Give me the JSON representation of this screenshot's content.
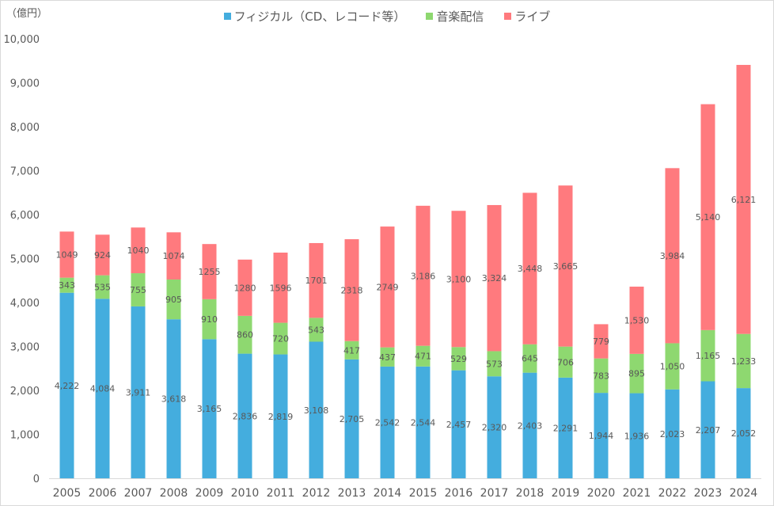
{
  "chart_data": {
    "type": "bar",
    "stacked": true,
    "title": "",
    "unit_label": "（億円）",
    "xlabel": "",
    "ylabel": "",
    "ylim": [
      0,
      10000
    ],
    "yticks": [
      0,
      1000,
      2000,
      3000,
      4000,
      5000,
      6000,
      7000,
      8000,
      9000,
      10000
    ],
    "ytick_labels": [
      "0",
      "1,000",
      "2,000",
      "3,000",
      "4,000",
      "5,000",
      "6,000",
      "7,000",
      "8,000",
      "9,000",
      "10,000"
    ],
    "grid": false,
    "legend_position": "top",
    "categories": [
      "2005",
      "2006",
      "2007",
      "2008",
      "2009",
      "2010",
      "2011",
      "2012",
      "2013",
      "2014",
      "2015",
      "2016",
      "2017",
      "2018",
      "2019",
      "2020",
      "2021",
      "2022",
      "2023",
      "2024"
    ],
    "series": [
      {
        "name": "フィジカル（CD、レコード等）",
        "color": "#44ADDE",
        "values": [
          4222,
          4084,
          3911,
          3618,
          3165,
          2836,
          2819,
          3108,
          2705,
          2542,
          2544,
          2457,
          2320,
          2403,
          2291,
          1944,
          1936,
          2023,
          2207,
          2052
        ],
        "labels": [
          "4,222",
          "4,084",
          "3,911",
          "3,618",
          "3,165",
          "2,836",
          "2,819",
          "3,108",
          "2,705",
          "2,542",
          "2,544",
          "2,457",
          "2,320",
          "2,403",
          "2,291",
          "1,944",
          "1,936",
          "2,023",
          "2,207",
          "2,052"
        ]
      },
      {
        "name": "音楽配信",
        "color": "#8ED870",
        "values": [
          343,
          535,
          755,
          905,
          910,
          860,
          720,
          543,
          417,
          437,
          471,
          529,
          573,
          645,
          706,
          783,
          895,
          1050,
          1165,
          1233
        ],
        "labels": [
          "343",
          "535",
          "755",
          "905",
          "910",
          "860",
          "720",
          "543",
          "417",
          "437",
          "471",
          "529",
          "573",
          "645",
          "706",
          "783",
          "895",
          "1,050",
          "1,165",
          "1,233"
        ]
      },
      {
        "name": "ライブ",
        "color": "#FF7A7E",
        "values": [
          1049,
          924,
          1040,
          1074,
          1255,
          1280,
          1596,
          1701,
          2318,
          2749,
          3186,
          3100,
          3324,
          3448,
          3665,
          779,
          1530,
          3984,
          5140,
          6121
        ],
        "labels": [
          "1049",
          "924",
          "1040",
          "1074",
          "1255",
          "1280",
          "1596",
          "1701",
          "2318",
          "2749",
          "3,186",
          "3,100",
          "3,324",
          "3,448",
          "3,665",
          "779",
          "1,530",
          "3,984",
          "5,140",
          "6,121"
        ]
      }
    ]
  }
}
